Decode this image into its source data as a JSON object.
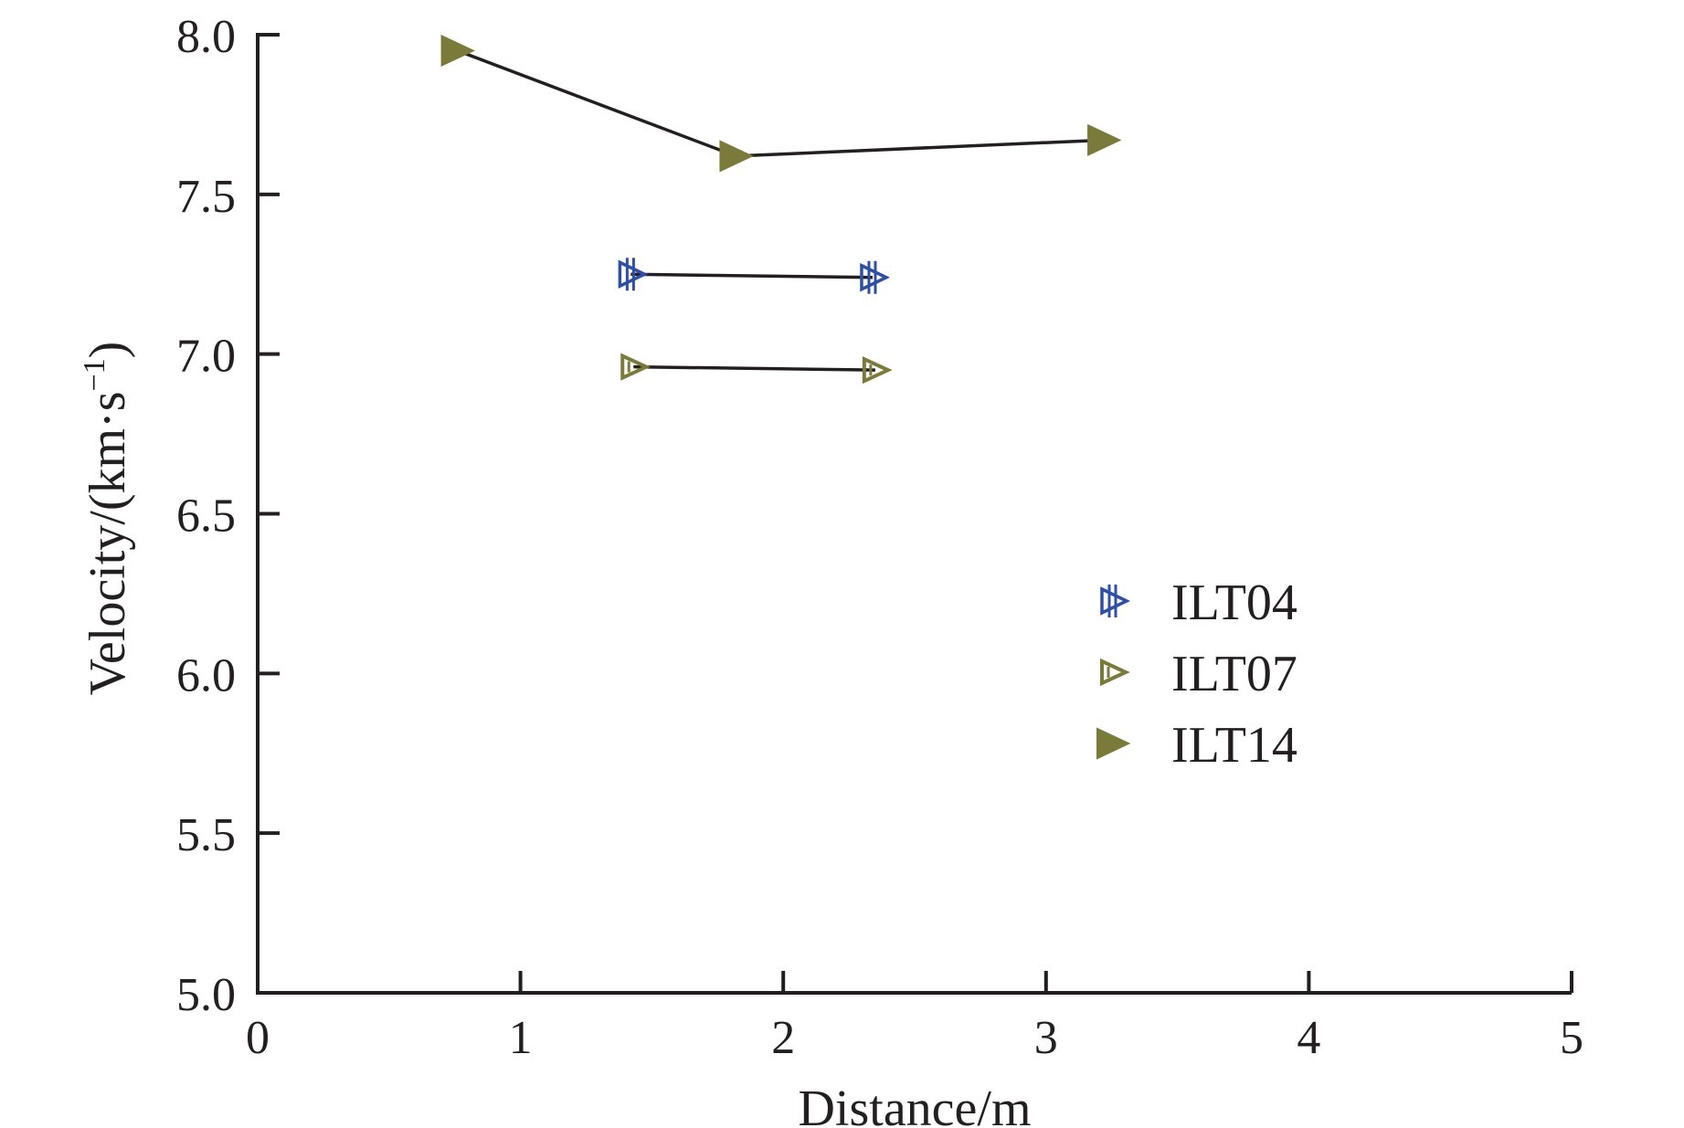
{
  "chart_data": {
    "type": "line",
    "xlabel": "Distance/m",
    "ylabel": "Velocity/(km·s",
    "ylabel_sup": "−1",
    "ylabel_close": ")",
    "xlim": [
      0,
      5
    ],
    "ylim": [
      5.0,
      8.0
    ],
    "xticks": [
      0,
      1,
      2,
      3,
      4,
      5
    ],
    "xtick_labels": [
      "0",
      "1",
      "2",
      "3",
      "4",
      "5"
    ],
    "yticks": [
      5.0,
      5.5,
      6.0,
      6.5,
      7.0,
      7.5,
      8.0
    ],
    "ytick_labels": [
      "5.0",
      "5.5",
      "6.0",
      "6.5",
      "7.0",
      "7.5",
      "8.0"
    ],
    "grid": false,
    "legend_position": "center-right",
    "series": [
      {
        "name": "ILT04",
        "marker": "double-tick-triangle-right",
        "color": "#2e4fa3",
        "x": [
          1.42,
          2.34
        ],
        "y": [
          7.25,
          7.24
        ]
      },
      {
        "name": "ILT07",
        "marker": "open-triangle-right",
        "color": "#7a7a3a",
        "x": [
          1.43,
          2.35
        ],
        "y": [
          6.96,
          6.95
        ]
      },
      {
        "name": "ILT14",
        "marker": "filled-triangle-right",
        "color": "#7a7a3a",
        "x": [
          0.76,
          1.82,
          3.22
        ],
        "y": [
          7.95,
          7.62,
          7.67
        ]
      }
    ]
  }
}
